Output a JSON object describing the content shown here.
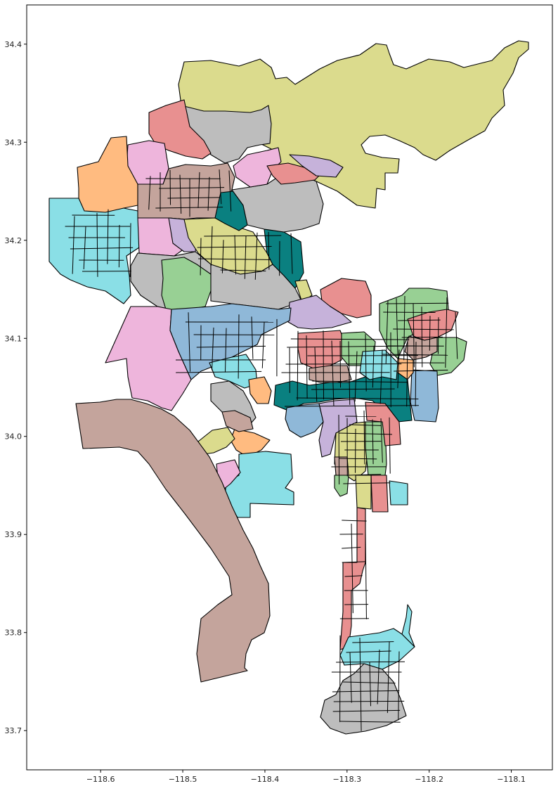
{
  "chart_data": {
    "type": "map",
    "title": "",
    "xlabel": "",
    "ylabel": "",
    "xlim": [
      -118.69,
      -118.05
    ],
    "ylim": [
      33.66,
      34.44
    ],
    "x_ticks": [
      {
        "value": -118.6,
        "label": "−118.6"
      },
      {
        "value": -118.5,
        "label": "−118.5"
      },
      {
        "value": -118.4,
        "label": "−118.4"
      },
      {
        "value": -118.3,
        "label": "−118.3"
      },
      {
        "value": -118.2,
        "label": "−118.2"
      },
      {
        "value": -118.1,
        "label": "−118.1"
      }
    ],
    "y_ticks": [
      {
        "value": 33.7,
        "label": "33.7"
      },
      {
        "value": 33.8,
        "label": "33.8"
      },
      {
        "value": 33.9,
        "label": "33.9"
      },
      {
        "value": 34.0,
        "label": "34.0"
      },
      {
        "value": 34.1,
        "label": "34.1"
      },
      {
        "value": 34.2,
        "label": "34.2"
      },
      {
        "value": 34.3,
        "label": "34.3"
      },
      {
        "value": 34.4,
        "label": "34.4"
      }
    ],
    "grid": false,
    "legend": "none",
    "palette": {
      "olive": "#dbdb8d",
      "gray": "#bdbdbd",
      "red": "#e89090",
      "pink": "#eeb5dc",
      "orange": "#ffbb80",
      "cyan": "#8adfe6",
      "brown": "#c4a49c",
      "purple": "#c6b2da",
      "green": "#98d094",
      "blue": "#8fb8d8",
      "teal": "#0a8080"
    }
  }
}
